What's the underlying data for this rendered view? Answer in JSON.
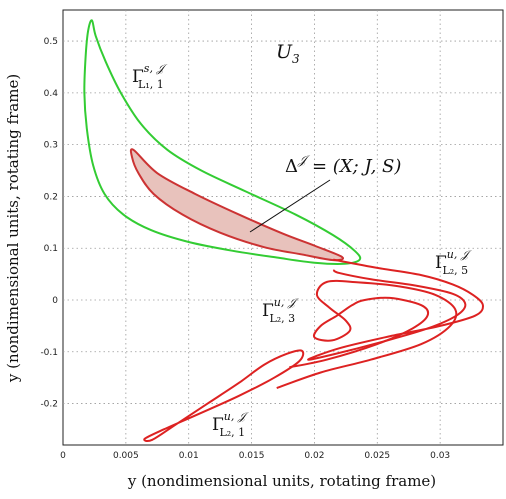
{
  "chart_data": {
    "type": "line",
    "title": "",
    "xlabel": "y (nondimensional units, rotating frame)",
    "ylabel": "y (nondimensional units, rotating frame)",
    "xlim": [
      0,
      0.035
    ],
    "ylim": [
      -0.28,
      0.56
    ],
    "grid": true,
    "x_ticks": [
      "0",
      "0.005",
      "0.01",
      "0.015",
      "0.02",
      "0.025",
      "0.03"
    ],
    "x_tick_values": [
      0,
      0.005,
      0.01,
      0.015,
      0.02,
      0.025,
      0.03
    ],
    "y_ticks": [
      "0.5",
      "0.4",
      "0.3",
      "0.2",
      "0.1",
      "0",
      "-0.1",
      "-0.2"
    ],
    "y_tick_values": [
      0.5,
      0.4,
      0.3,
      0.2,
      0.1,
      0,
      -0.1,
      -0.2
    ],
    "colors": {
      "stable": "#33cc33",
      "unstable": "#dd2222",
      "overlap_fill": "#e8c2bc"
    },
    "series": [
      {
        "key": "stable_1",
        "color": "#33cc33",
        "closed": true,
        "points": [
          [
            0.0023,
            0.54
          ],
          [
            0.0026,
            0.51
          ],
          [
            0.0034,
            0.46
          ],
          [
            0.0046,
            0.4
          ],
          [
            0.0062,
            0.34
          ],
          [
            0.0083,
            0.29
          ],
          [
            0.011,
            0.25
          ],
          [
            0.0145,
            0.21
          ],
          [
            0.0185,
            0.165
          ],
          [
            0.0215,
            0.125
          ],
          [
            0.0232,
            0.095
          ],
          [
            0.0236,
            0.078
          ],
          [
            0.0224,
            0.07
          ],
          [
            0.02,
            0.072
          ],
          [
            0.017,
            0.082
          ],
          [
            0.0135,
            0.095
          ],
          [
            0.01,
            0.112
          ],
          [
            0.007,
            0.135
          ],
          [
            0.0048,
            0.165
          ],
          [
            0.0033,
            0.205
          ],
          [
            0.0024,
            0.26
          ],
          [
            0.0019,
            0.33
          ],
          [
            0.0017,
            0.4
          ],
          [
            0.0018,
            0.47
          ],
          [
            0.002,
            0.52
          ]
        ]
      },
      {
        "key": "overlap_region",
        "color": "#cc3333",
        "closed": true,
        "filled": true,
        "points": [
          [
            0.0056,
            0.29
          ],
          [
            0.0075,
            0.245
          ],
          [
            0.0105,
            0.205
          ],
          [
            0.014,
            0.165
          ],
          [
            0.0175,
            0.128
          ],
          [
            0.02,
            0.105
          ],
          [
            0.0222,
            0.083
          ],
          [
            0.0215,
            0.077
          ],
          [
            0.019,
            0.088
          ],
          [
            0.016,
            0.102
          ],
          [
            0.0125,
            0.13
          ],
          [
            0.0095,
            0.165
          ],
          [
            0.0072,
            0.205
          ],
          [
            0.006,
            0.245
          ],
          [
            0.0055,
            0.275
          ]
        ]
      },
      {
        "key": "unstable_5",
        "color": "#dd2222",
        "closed": false,
        "points": [
          [
            0.0215,
            0.078
          ],
          [
            0.025,
            0.062
          ],
          [
            0.0285,
            0.048
          ],
          [
            0.031,
            0.03
          ],
          [
            0.0326,
            0.01
          ],
          [
            0.0334,
            -0.01
          ],
          [
            0.0328,
            -0.03
          ],
          [
            0.03,
            -0.05
          ],
          [
            0.026,
            -0.07
          ],
          [
            0.022,
            -0.093
          ],
          [
            0.0195,
            -0.115
          ],
          [
            0.0215,
            -0.105
          ],
          [
            0.0255,
            -0.08
          ],
          [
            0.029,
            -0.055
          ],
          [
            0.0313,
            -0.03
          ],
          [
            0.032,
            -0.008
          ],
          [
            0.031,
            0.012
          ],
          [
            0.028,
            0.028
          ],
          [
            0.0245,
            0.04
          ],
          [
            0.022,
            0.052
          ],
          [
            0.0215,
            0.058
          ]
        ]
      },
      {
        "key": "unstable_3",
        "color": "#dd2222",
        "closed": false,
        "points": [
          [
            0.017,
            -0.17
          ],
          [
            0.0205,
            -0.14
          ],
          [
            0.0245,
            -0.115
          ],
          [
            0.0285,
            -0.085
          ],
          [
            0.0308,
            -0.05
          ],
          [
            0.0312,
            -0.018
          ],
          [
            0.0296,
            0.01
          ],
          [
            0.0268,
            0.026
          ],
          [
            0.0235,
            0.034
          ],
          [
            0.021,
            0.035
          ],
          [
            0.0202,
            0.01
          ],
          [
            0.0212,
            -0.015
          ],
          [
            0.0225,
            -0.04
          ],
          [
            0.0228,
            -0.06
          ],
          [
            0.0214,
            -0.078
          ],
          [
            0.02,
            -0.072
          ],
          [
            0.0205,
            -0.05
          ],
          [
            0.0218,
            -0.03
          ],
          [
            0.023,
            -0.01
          ],
          [
            0.024,
            0.0
          ],
          [
            0.026,
            0.004
          ],
          [
            0.0285,
            -0.01
          ],
          [
            0.029,
            -0.03
          ],
          [
            0.0278,
            -0.055
          ],
          [
            0.025,
            -0.085
          ],
          [
            0.021,
            -0.115
          ],
          [
            0.018,
            -0.13
          ]
        ]
      },
      {
        "key": "unstable_1",
        "color": "#dd2222",
        "closed": true,
        "points": [
          [
            0.0071,
            -0.27
          ],
          [
            0.009,
            -0.24
          ],
          [
            0.0115,
            -0.2
          ],
          [
            0.014,
            -0.16
          ],
          [
            0.016,
            -0.125
          ],
          [
            0.0178,
            -0.104
          ],
          [
            0.019,
            -0.098
          ],
          [
            0.0188,
            -0.118
          ],
          [
            0.0168,
            -0.15
          ],
          [
            0.014,
            -0.185
          ],
          [
            0.0108,
            -0.22
          ],
          [
            0.008,
            -0.25
          ],
          [
            0.0065,
            -0.268
          ]
        ]
      }
    ],
    "annotations": {
      "u3": "U",
      "u3_sub": "3",
      "gamma": "Γ",
      "stable_sup": "s, 𝒥",
      "stable_sub": "L₁, 1",
      "unstable_sup": "u, 𝒥",
      "unstable5_sub": "L₂, 5",
      "unstable3_sub": "L₂, 3",
      "unstable1_sub": "L₂, 1",
      "delta": "Δ",
      "delta_sup": "𝒥",
      "delta_eq": " = (X; J, S)"
    }
  }
}
